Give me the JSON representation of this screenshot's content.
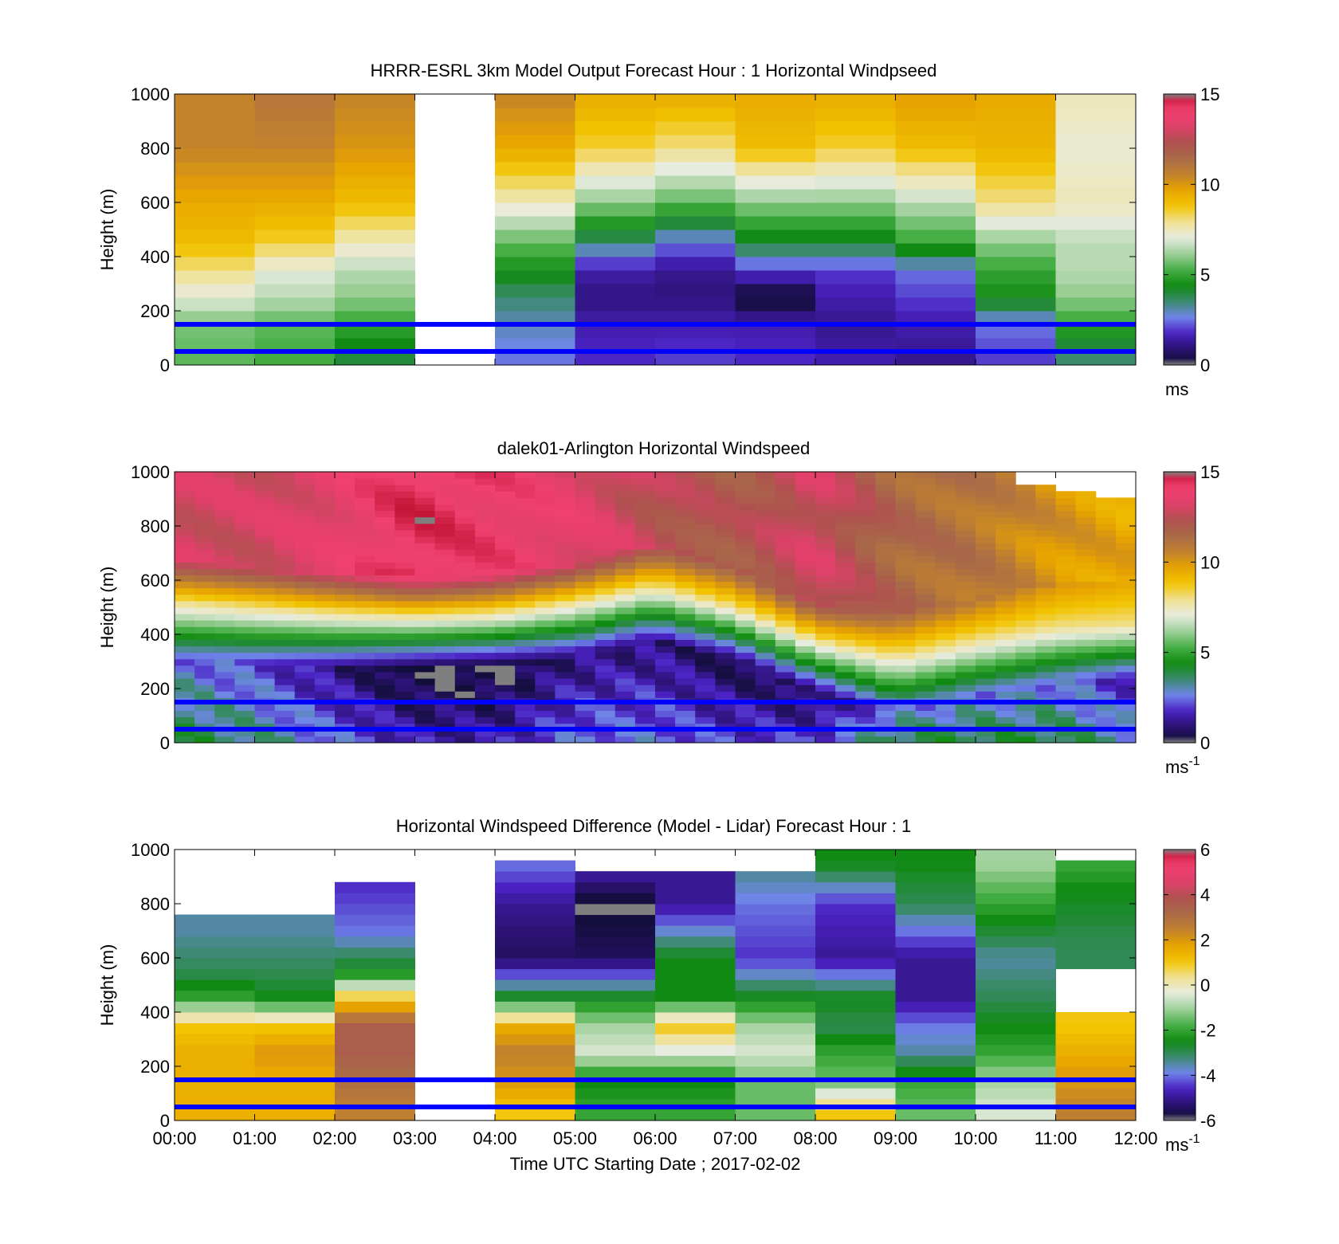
{
  "figure": {
    "xlabel": "Time UTC  Starting Date ; 2017-02-02",
    "x_ticks": [
      "00:00",
      "01:00",
      "02:00",
      "03:00",
      "04:00",
      "05:00",
      "06:00",
      "07:00",
      "08:00",
      "09:00",
      "10:00",
      "11:00",
      "12:00"
    ],
    "reference_line_color": "#0000ff",
    "reference_heights_m": [
      50,
      150
    ]
  },
  "panels": [
    {
      "title": "HRRR-ESRL 3km Model Output   Forecast Hour : 1 Horizontal Windpseed",
      "ylabel": "Height (m)",
      "y_ticks": [
        "0",
        "200",
        "400",
        "600",
        "800",
        "1000"
      ],
      "colorbar": {
        "ticks": [
          "0",
          "5",
          "10",
          "15"
        ],
        "unit": "ms",
        "unit_sup": ""
      }
    },
    {
      "title": "dalek01-Arlington  Horizontal Windspeed",
      "ylabel": "Height (m)",
      "y_ticks": [
        "0",
        "200",
        "400",
        "600",
        "800",
        "1000"
      ],
      "colorbar": {
        "ticks": [
          "0",
          "5",
          "10",
          "15"
        ],
        "unit": "ms",
        "unit_sup": "-1"
      }
    },
    {
      "title": "Horizontal Windspeed Difference (Model - Lidar) Forecast Hour : 1",
      "ylabel": "Height (m)",
      "y_ticks": [
        "0",
        "200",
        "400",
        "600",
        "800",
        "1000"
      ],
      "colorbar": {
        "ticks": [
          "-6",
          "-4",
          "-2",
          "0",
          "2",
          "4",
          "6"
        ],
        "unit": "ms",
        "unit_sup": "-1"
      }
    }
  ],
  "colormap": [
    "#7f7f7f",
    "#0d0d2e",
    "#2a1270",
    "#4b22c4",
    "#6f86e8",
    "#3a8a6a",
    "#0f8a10",
    "#48b048",
    "#9fd09a",
    "#e8ece0",
    "#f0e090",
    "#f2c400",
    "#e6a200",
    "#c08030",
    "#a86a48",
    "#b05050",
    "#e0406a",
    "#f04070",
    "#c01030",
    "#7f7f7f"
  ],
  "chart_data": [
    {
      "type": "heatmap",
      "title": "HRRR-ESRL 3km Model Output   Forecast Hour : 1 Horizontal Windpseed",
      "ylabel": "Height (m)",
      "xlim_hours": [
        0,
        12
      ],
      "ylim": [
        0,
        1000
      ],
      "clim": [
        0,
        15
      ],
      "colorbar_unit": "ms",
      "missing_hours": [
        [
          3,
          4
        ]
      ],
      "hourly_columns_speed_profile": [
        {
          "hour": 0,
          "levels_m": [
            30,
            150,
            250,
            350,
            450,
            600,
            800,
            1000
          ],
          "values": [
            5.5,
            5.8,
            7,
            8,
            9,
            9.5,
            10.5,
            10.5
          ]
        },
        {
          "hour": 1,
          "levels_m": [
            30,
            150,
            250,
            350,
            450,
            600,
            800,
            1000
          ],
          "values": [
            5.2,
            5.5,
            6.5,
            7,
            8.5,
            9.5,
            10.5,
            11
          ]
        },
        {
          "hour": 2,
          "levels_m": [
            30,
            150,
            250,
            350,
            450,
            600,
            800,
            1000
          ],
          "values": [
            4,
            5,
            6,
            6.5,
            7.5,
            9,
            10,
            10.5
          ]
        },
        {
          "hour": 4,
          "levels_m": [
            30,
            150,
            250,
            350,
            450,
            600,
            800,
            1000
          ],
          "values": [
            2.5,
            3,
            3.5,
            4.5,
            5.5,
            7.5,
            9.5,
            10.5
          ]
        },
        {
          "hour": 5,
          "levels_m": [
            30,
            150,
            250,
            350,
            450,
            600,
            800,
            1000
          ],
          "values": [
            1.8,
            1.5,
            1,
            1.5,
            3.5,
            6,
            8.5,
            9.5
          ]
        },
        {
          "hour": 6,
          "levels_m": [
            30,
            150,
            250,
            350,
            450,
            600,
            800,
            1000
          ],
          "values": [
            2,
            1.5,
            1,
            1.2,
            2.5,
            5.5,
            8,
            9.5
          ]
        },
        {
          "hour": 7,
          "levels_m": [
            30,
            150,
            250,
            350,
            450,
            600,
            800,
            1000
          ],
          "values": [
            1.8,
            1.5,
            0,
            2,
            4,
            6,
            9,
            9.5
          ]
        },
        {
          "hour": 8,
          "levels_m": [
            30,
            150,
            250,
            350,
            450,
            600,
            800,
            1000
          ],
          "values": [
            1.5,
            1.2,
            1.5,
            2,
            4,
            6,
            8.5,
            9.5
          ]
        },
        {
          "hour": 9,
          "levels_m": [
            30,
            150,
            250,
            350,
            450,
            600,
            800,
            1000
          ],
          "values": [
            1.2,
            1.5,
            2,
            2.5,
            5,
            6.5,
            9,
            9.8
          ]
        },
        {
          "hour": 10,
          "levels_m": [
            30,
            150,
            250,
            350,
            450,
            600,
            800,
            1000
          ],
          "values": [
            2,
            2.5,
            4.5,
            5,
            6,
            8,
            9.2,
            9.5
          ]
        },
        {
          "hour": 11,
          "levels_m": [
            30,
            150,
            250,
            350,
            450,
            600,
            800,
            1000
          ],
          "values": [
            3.5,
            5,
            6,
            6.5,
            6.5,
            7.5,
            7.2,
            7.5
          ]
        }
      ]
    },
    {
      "type": "heatmap",
      "title": "dalek01-Arlington  Horizontal Windspeed",
      "ylabel": "Height (m)",
      "xlim_hours": [
        0,
        12
      ],
      "ylim": [
        0,
        1000
      ],
      "clim": [
        0,
        15
      ],
      "colorbar_unit": "ms-1",
      "description_values": "lidar speed profiles every 10 min; low-level jet core 12-14 ms-1 near 600-900 m, weak flow (1-3 ms-1) below 400 m",
      "jet_base_height_m": [
        [
          0,
          520
        ],
        [
          1,
          500
        ],
        [
          2,
          480
        ],
        [
          3,
          470
        ],
        [
          4,
          480
        ],
        [
          5,
          520
        ],
        [
          6,
          580
        ],
        [
          7,
          500
        ],
        [
          8,
          380
        ],
        [
          9,
          320
        ],
        [
          10,
          380
        ],
        [
          11,
          430
        ],
        [
          12,
          440
        ]
      ],
      "surface_speed_ms": [
        [
          0,
          4
        ],
        [
          1,
          3.5
        ],
        [
          2,
          2.5
        ],
        [
          3,
          1.5
        ],
        [
          4,
          1.5
        ],
        [
          5,
          2.5
        ],
        [
          6,
          2.5
        ],
        [
          7,
          2
        ],
        [
          8,
          2
        ],
        [
          9,
          4
        ],
        [
          10,
          4
        ],
        [
          11,
          4
        ],
        [
          12,
          3
        ]
      ],
      "jet_speed_ms": [
        [
          0,
          13
        ],
        [
          1,
          13
        ],
        [
          2,
          13.5
        ],
        [
          3,
          14.5
        ],
        [
          4,
          14
        ],
        [
          5,
          13.5
        ],
        [
          6,
          12.5
        ],
        [
          7,
          12
        ],
        [
          8,
          13
        ],
        [
          9,
          11.5
        ],
        [
          10,
          11
        ],
        [
          11,
          10
        ],
        [
          12,
          9.5
        ]
      ]
    },
    {
      "type": "heatmap",
      "title": "Horizontal Windspeed Difference (Model - Lidar) Forecast Hour : 1",
      "ylabel": "Height (m)",
      "xlabel": "Time UTC  Starting Date ; 2017-02-02",
      "xlim_hours": [
        0,
        12
      ],
      "ylim": [
        0,
        1000
      ],
      "clim": [
        -6,
        6
      ],
      "colorbar_unit": "ms-1",
      "missing_hours": [
        [
          3,
          4
        ]
      ],
      "hourly_columns_difference_profile": [
        {
          "hour": 0,
          "top_m": 750,
          "levels_m": [
            30,
            150,
            250,
            350,
            450,
            550,
            700
          ],
          "values": [
            1.5,
            1.5,
            1.5,
            1,
            -2,
            -3,
            -3.5
          ]
        },
        {
          "hour": 1,
          "top_m": 750,
          "levels_m": [
            30,
            150,
            250,
            350,
            450,
            550,
            700
          ],
          "values": [
            1.5,
            1.5,
            2,
            1,
            -2.5,
            -3,
            -3.5
          ]
        },
        {
          "hour": 2,
          "top_m": 880,
          "levels_m": [
            30,
            150,
            250,
            350,
            450,
            550,
            700,
            850
          ],
          "values": [
            2.5,
            3,
            3.5,
            3.5,
            1,
            -2.5,
            -4,
            -4.5
          ]
        },
        {
          "hour": 4,
          "top_m": 960,
          "levels_m": [
            30,
            150,
            250,
            350,
            450,
            600,
            800,
            950
          ],
          "values": [
            1,
            2,
            2.5,
            1.5,
            -2.5,
            -5.5,
            -5,
            -4
          ]
        },
        {
          "hour": 5,
          "top_m": 910,
          "levels_m": [
            30,
            150,
            250,
            350,
            450,
            600,
            800,
            900
          ],
          "values": [
            -2,
            -2.5,
            -0.5,
            -1,
            -2.5,
            -5.5,
            -6,
            -5
          ]
        },
        {
          "hour": 6,
          "top_m": 930,
          "levels_m": [
            30,
            150,
            250,
            350,
            450,
            600,
            800,
            900
          ],
          "values": [
            -2,
            -2.5,
            -0.5,
            1,
            -2.5,
            -2.5,
            -5,
            -5
          ]
        },
        {
          "hour": 7,
          "top_m": 910,
          "levels_m": [
            30,
            150,
            250,
            350,
            450,
            600,
            800,
            900
          ],
          "values": [
            -1.5,
            -1.5,
            -0.5,
            -1,
            -2.5,
            -4.5,
            -4,
            -3.5
          ]
        },
        {
          "hour": 8,
          "top_m": 1000,
          "levels_m": [
            30,
            150,
            250,
            350,
            450,
            600,
            800,
            950
          ],
          "values": [
            1,
            -1.5,
            -2,
            -3,
            -2.5,
            -5,
            -4.5,
            -2.5
          ]
        },
        {
          "hour": 9,
          "top_m": 1000,
          "levels_m": [
            30,
            150,
            250,
            350,
            450,
            600,
            800,
            950
          ],
          "values": [
            -1.5,
            -2,
            -3.5,
            -4,
            -5,
            -5,
            -3,
            -2.5
          ]
        },
        {
          "hour": 10,
          "top_m": 1000,
          "levels_m": [
            30,
            150,
            250,
            350,
            450,
            600,
            800,
            950
          ],
          "values": [
            -0.5,
            -1,
            -2,
            -2.5,
            -3,
            -3.5,
            -2,
            -1
          ]
        },
        {
          "hour": 11,
          "top_m": 960,
          "levels_m": [
            30,
            150,
            250,
            350,
            450,
            650,
            850,
            930
          ],
          "values": [
            2.5,
            2,
            1.5,
            1,
            null,
            -3,
            -2.5,
            -2
          ]
        }
      ]
    }
  ]
}
